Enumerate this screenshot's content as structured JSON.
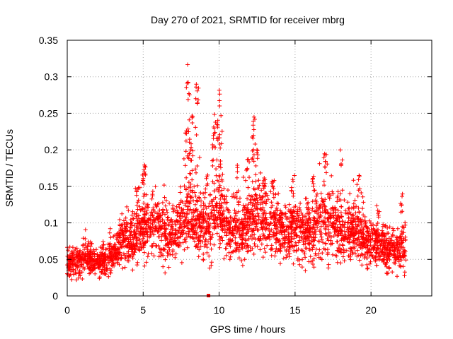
{
  "chart_data": {
    "type": "scatter",
    "title": "Day 270 of 2021, SRMTID for receiver mbrg",
    "xlabel": "GPS time / hours",
    "ylabel": "SRMTID / TECUs",
    "xlim": [
      0,
      24
    ],
    "ylim": [
      0,
      0.35
    ],
    "x_ticks": [
      0,
      5,
      10,
      15,
      20
    ],
    "y_ticks": [
      0,
      0.05,
      0.1,
      0.15,
      0.2,
      0.25,
      0.3,
      0.35
    ],
    "x_tick_labels": [
      "0",
      "5",
      "10",
      "15",
      "20"
    ],
    "y_tick_labels": [
      "0",
      "0.05",
      "0.1",
      "0.15",
      "0.2",
      "0.25",
      "0.3",
      "0.35"
    ],
    "grid": true,
    "marker": "plus",
    "series": [
      {
        "name": "SRMTID",
        "color": "#ff0000",
        "profile": [
          [
            0.0,
            0.045
          ],
          [
            0.5,
            0.048
          ],
          [
            1.0,
            0.05
          ],
          [
            1.5,
            0.052
          ],
          [
            2.0,
            0.045
          ],
          [
            2.5,
            0.05
          ],
          [
            3.0,
            0.055
          ],
          [
            3.5,
            0.07
          ],
          [
            4.0,
            0.08
          ],
          [
            4.5,
            0.075
          ],
          [
            5.0,
            0.09
          ],
          [
            5.5,
            0.095
          ],
          [
            6.0,
            0.09
          ],
          [
            6.5,
            0.085
          ],
          [
            7.0,
            0.08
          ],
          [
            7.5,
            0.095
          ],
          [
            8.0,
            0.11
          ],
          [
            8.5,
            0.1
          ],
          [
            9.0,
            0.09
          ],
          [
            9.5,
            0.1
          ],
          [
            10.0,
            0.115
          ],
          [
            10.5,
            0.095
          ],
          [
            11.0,
            0.085
          ],
          [
            11.5,
            0.09
          ],
          [
            12.0,
            0.1
          ],
          [
            12.5,
            0.11
          ],
          [
            13.0,
            0.105
          ],
          [
            13.5,
            0.095
          ],
          [
            14.0,
            0.09
          ],
          [
            14.5,
            0.085
          ],
          [
            15.0,
            0.095
          ],
          [
            15.5,
            0.09
          ],
          [
            16.0,
            0.085
          ],
          [
            16.5,
            0.095
          ],
          [
            17.0,
            0.1
          ],
          [
            17.5,
            0.095
          ],
          [
            18.0,
            0.09
          ],
          [
            18.5,
            0.085
          ],
          [
            19.0,
            0.09
          ],
          [
            19.5,
            0.08
          ],
          [
            20.0,
            0.075
          ],
          [
            20.5,
            0.07
          ],
          [
            21.0,
            0.065
          ],
          [
            21.5,
            0.06
          ],
          [
            22.0,
            0.065
          ],
          [
            22.3,
            0.07
          ]
        ],
        "peaks": [
          [
            7.9,
            0.32
          ],
          [
            8.0,
            0.3
          ],
          [
            8.5,
            0.3
          ],
          [
            8.6,
            0.29
          ],
          [
            8.2,
            0.26
          ],
          [
            7.8,
            0.23
          ],
          [
            8.1,
            0.22
          ],
          [
            10.0,
            0.285
          ],
          [
            9.7,
            0.25
          ],
          [
            9.9,
            0.24
          ],
          [
            10.1,
            0.23
          ],
          [
            9.6,
            0.21
          ],
          [
            12.3,
            0.245
          ],
          [
            12.2,
            0.22
          ],
          [
            12.5,
            0.2
          ],
          [
            11.9,
            0.19
          ],
          [
            5.1,
            0.185
          ],
          [
            5.0,
            0.17
          ],
          [
            13.0,
            0.17
          ],
          [
            14.8,
            0.16
          ],
          [
            16.2,
            0.17
          ],
          [
            17.0,
            0.2
          ],
          [
            18.0,
            0.2
          ],
          [
            19.2,
            0.165
          ],
          [
            22.0,
            0.14
          ],
          [
            20.5,
            0.12
          ],
          [
            4.6,
            0.15
          ],
          [
            9.2,
            0.17
          ],
          [
            11.2,
            0.18
          ],
          [
            13.5,
            0.16
          ]
        ],
        "outlier": [
          9.3,
          0.0
        ]
      }
    ]
  }
}
